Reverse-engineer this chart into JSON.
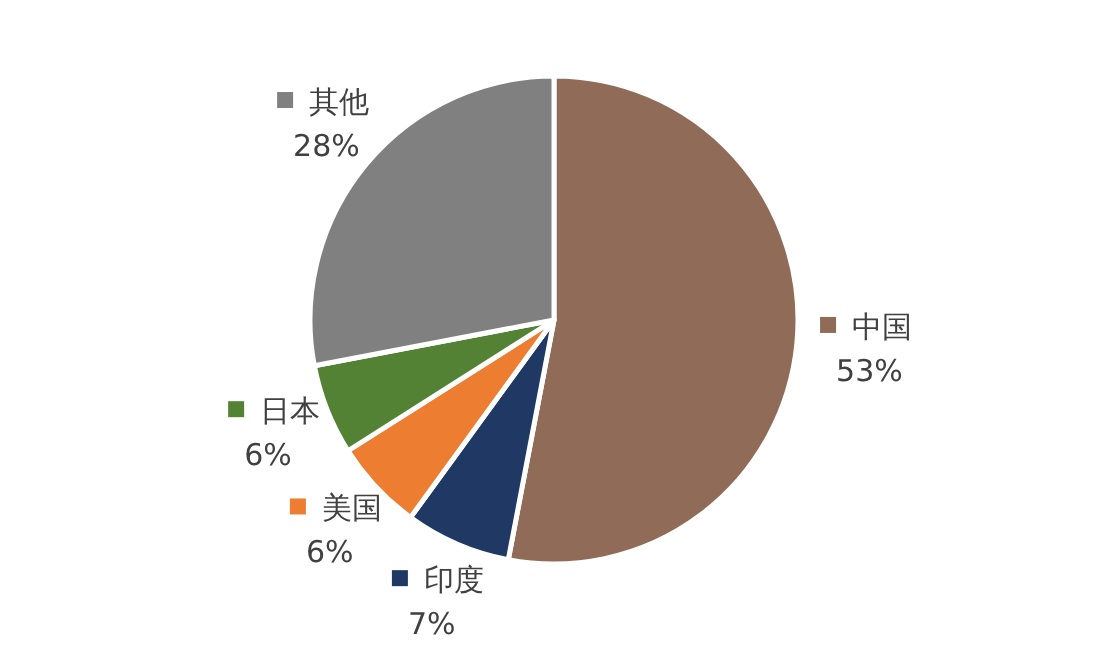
{
  "chart_data": {
    "type": "pie",
    "categories": [
      "中国",
      "印度",
      "美国",
      "日本",
      "其他"
    ],
    "values": [
      53,
      7,
      6,
      6,
      28
    ],
    "value_labels": [
      "53%",
      "7%",
      "6%",
      "6%",
      "28%"
    ],
    "colors": [
      "#8f6b58",
      "#1f3864",
      "#ed7d31",
      "#548235",
      "#808080"
    ],
    "legend": "right"
  }
}
